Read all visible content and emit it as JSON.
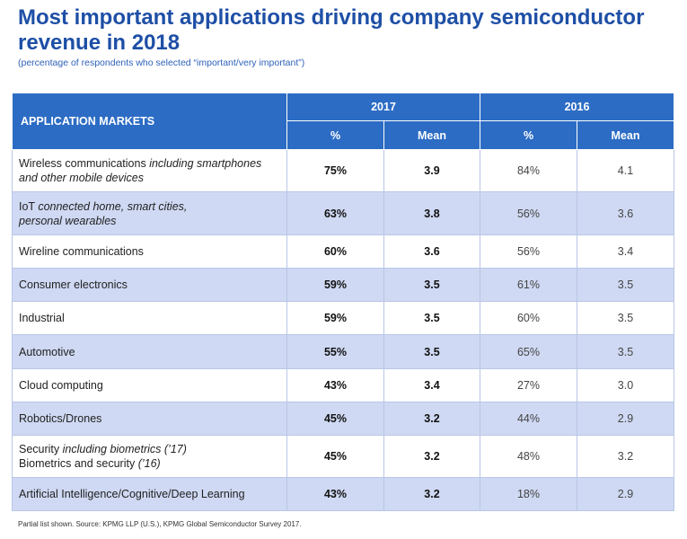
{
  "title": "Most important applications driving company semiconductor revenue in 2018",
  "subtitle": "(percentage of respondents who selected “important/very important”)",
  "footnote": "Partial list shown.   Source: KPMG LLP (U.S.), KPMG Global Semiconductor Survey 2017.",
  "colors": {
    "header_bg": "#2c6cc4",
    "title": "#1e4fa6",
    "stripe": "#cfd9f3"
  },
  "chart_data": {
    "type": "table",
    "title": "Most important applications driving company semiconductor revenue in 2018",
    "subtitle": "(percentage of respondents who selected “important/very important”)",
    "row_header": "APPLICATION MARKETS",
    "years": [
      "2017",
      "2016"
    ],
    "subheaders": [
      "%",
      "Mean",
      "%",
      "Mean"
    ],
    "rows": [
      {
        "name": "Wireless communications",
        "name_italic": "including smartphones",
        "name_line2": "and other mobile devices",
        "name_line2_italic": true,
        "pct_2017": "75%",
        "mean_2017": "3.9",
        "pct_2016": "84%",
        "mean_2016": "4.1",
        "h": 47
      },
      {
        "name": "IoT",
        "name_italic": "connected home, smart cities,",
        "name_line2": "personal wearables",
        "name_line2_italic": true,
        "pct_2017": "63%",
        "mean_2017": "3.8",
        "pct_2016": "56%",
        "mean_2016": "3.6",
        "h": 48
      },
      {
        "name": "Wireline communications",
        "name_italic": "",
        "name_line2": "",
        "pct_2017": "60%",
        "mean_2017": "3.6",
        "pct_2016": "56%",
        "mean_2016": "3.4",
        "h": 37
      },
      {
        "name": "Consumer electronics",
        "name_italic": "",
        "name_line2": "",
        "pct_2017": "59%",
        "mean_2017": "3.5",
        "pct_2016": "61%",
        "mean_2016": "3.5",
        "h": 37
      },
      {
        "name": "Industrial",
        "name_italic": "",
        "name_line2": "",
        "pct_2017": "59%",
        "mean_2017": "3.5",
        "pct_2016": "60%",
        "mean_2016": "3.5",
        "h": 37
      },
      {
        "name": "Automotive",
        "name_italic": "",
        "name_line2": "",
        "pct_2017": "55%",
        "mean_2017": "3.5",
        "pct_2016": "65%",
        "mean_2016": "3.5",
        "h": 38
      },
      {
        "name": "Cloud computing",
        "name_italic": "",
        "name_line2": "",
        "pct_2017": "43%",
        "mean_2017": "3.4",
        "pct_2016": "27%",
        "mean_2016": "3.0",
        "h": 37
      },
      {
        "name": "Robotics/Drones",
        "name_italic": "",
        "name_line2": "",
        "pct_2017": "45%",
        "mean_2017": "3.2",
        "pct_2016": "44%",
        "mean_2016": "2.9",
        "h": 37
      },
      {
        "name": "Security",
        "name_italic": "including biometrics (’17)",
        "name_line2": "Biometrics and security",
        "name_line2_suffix": "(’16)",
        "name_line2_italic": false,
        "pct_2017": "45%",
        "mean_2017": "3.2",
        "pct_2016": "48%",
        "mean_2016": "3.2",
        "h": 47
      },
      {
        "name": "Artificial Intelligence/Cognitive/Deep Learning",
        "name_italic": "",
        "name_line2": "",
        "pct_2017": "43%",
        "mean_2017": "3.2",
        "pct_2016": "18%",
        "mean_2016": "2.9",
        "h": 37
      }
    ]
  }
}
